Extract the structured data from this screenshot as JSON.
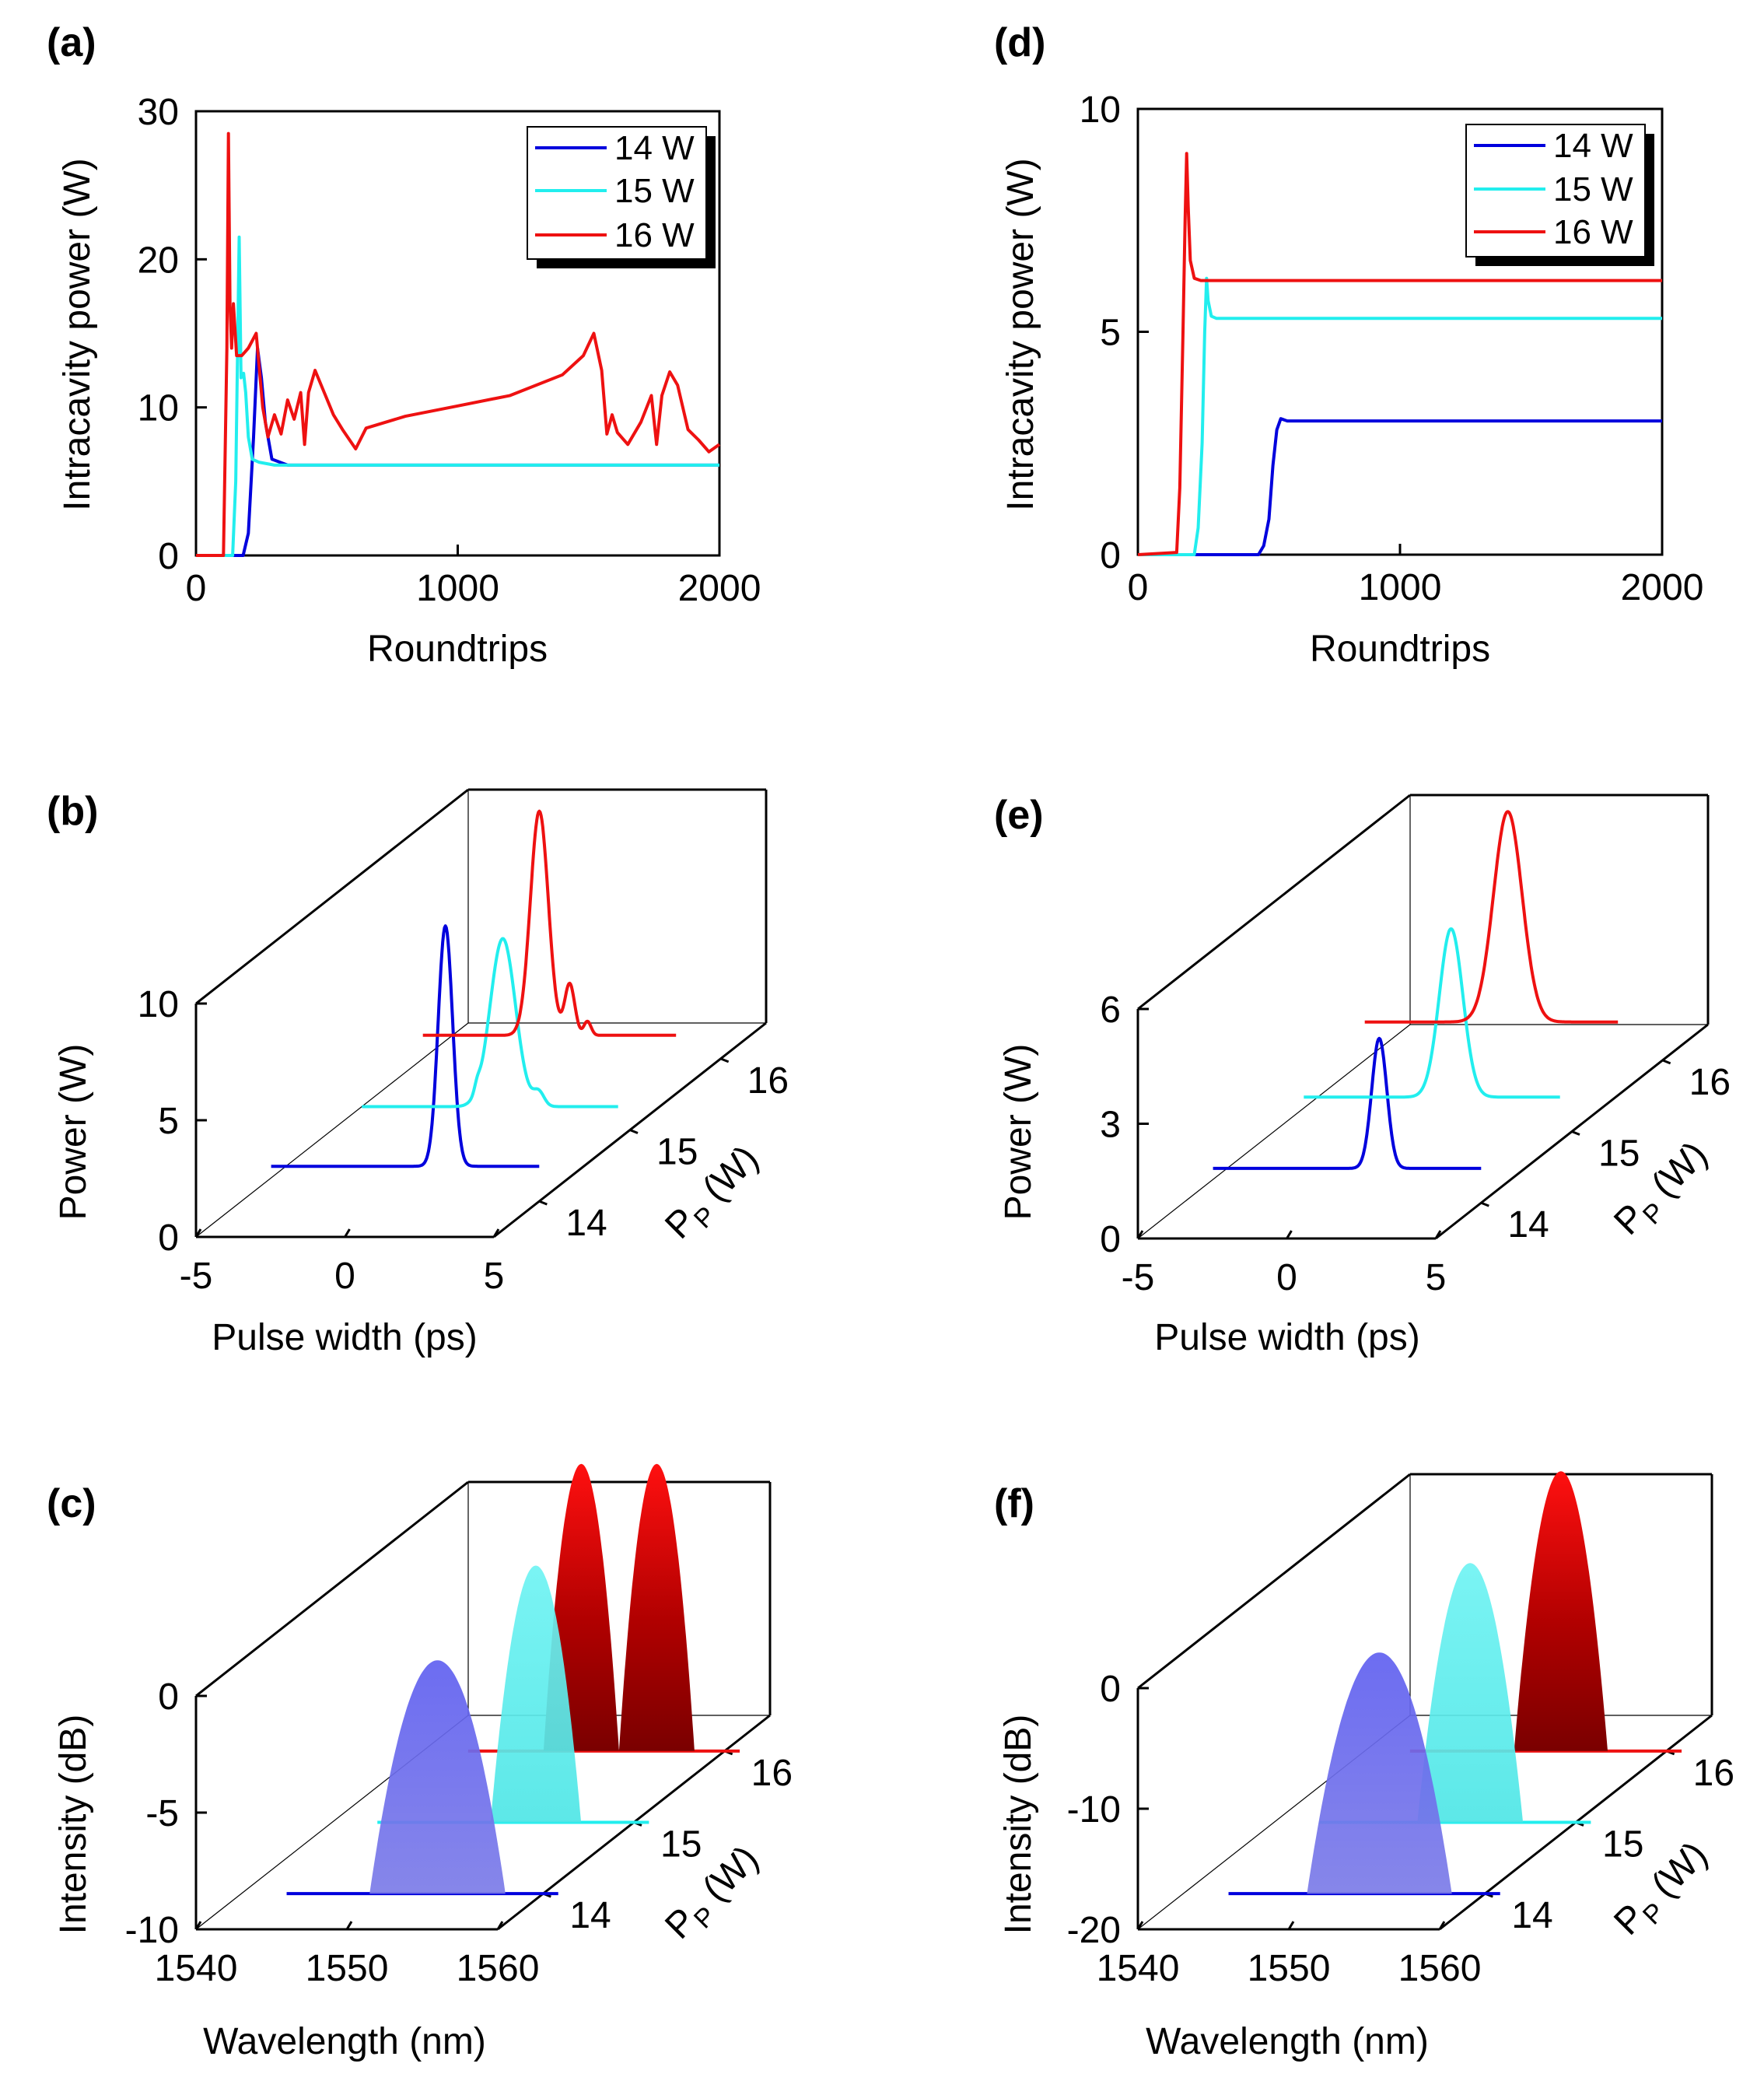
{
  "colors": {
    "p14": "#0000dd",
    "p15": "#22eeee",
    "p16": "#ee1111"
  },
  "chart_data": [
    {
      "panel": "(a)",
      "type": "line",
      "xlabel": "Roundtrips",
      "ylabel": "Intracavity power (W)",
      "xlim": [
        0,
        2000
      ],
      "ylim": [
        0,
        30
      ],
      "xticks": [
        "0",
        "1000",
        "2000"
      ],
      "yticks": [
        "0",
        "10",
        "20",
        "30"
      ],
      "legend": [
        "14 W",
        "15 W",
        "16 W"
      ],
      "legend_position": "top-right",
      "series": [
        {
          "name": "14 W",
          "x": [
            0,
            180,
            200,
            220,
            235,
            250,
            265,
            290,
            350,
            1000,
            2000
          ],
          "y": [
            0,
            0,
            1.5,
            8,
            14,
            12,
            9,
            6.5,
            6.1,
            6.1,
            6.1
          ]
        },
        {
          "name": "15 W",
          "x": [
            0,
            140,
            152,
            165,
            172,
            182,
            190,
            200,
            215,
            240,
            270,
            300,
            1000,
            2000
          ],
          "y": [
            0,
            0,
            5,
            21.5,
            12,
            12.3,
            11,
            8,
            6.5,
            6.3,
            6.2,
            6.1,
            6.1,
            6.1
          ]
        },
        {
          "name": "16 W",
          "x": [
            0,
            105,
            118,
            124,
            130,
            136,
            143,
            155,
            175,
            200,
            230,
            255,
            275,
            300,
            325,
            350,
            375,
            400,
            415,
            430,
            455,
            490,
            525,
            560,
            610,
            650,
            800,
            1000,
            1200,
            1400,
            1480,
            1520,
            1550,
            1570,
            1590,
            1610,
            1650,
            1700,
            1740,
            1760,
            1780,
            1810,
            1840,
            1880,
            1920,
            1960,
            2000
          ],
          "y": [
            0,
            0,
            14,
            28.5,
            17,
            14,
            17,
            13.5,
            13.5,
            14,
            15,
            10,
            8,
            9.5,
            8.2,
            10.5,
            9.2,
            11,
            7.5,
            11,
            12.5,
            11,
            9.5,
            8.5,
            7.2,
            8.6,
            9.4,
            10.1,
            10.8,
            12.2,
            13.5,
            15,
            12.5,
            8.2,
            9.5,
            8.3,
            7.5,
            9,
            10.8,
            7.5,
            10.8,
            12.4,
            11.5,
            8.5,
            7.8,
            7,
            7.5
          ]
        }
      ]
    },
    {
      "panel": "(b)",
      "type": "line",
      "xlabel": "Pulse width (ps)",
      "ylabel": "Power (W)",
      "zlabel": "P_P (W)",
      "xlim": [
        -5,
        5
      ],
      "ylim": [
        0,
        10
      ],
      "xticks": [
        "-5",
        "0",
        "5"
      ],
      "yticks": [
        "0",
        "5",
        "10"
      ],
      "zticks": [
        "14",
        "15",
        "16"
      ],
      "series": [
        {
          "name": "14 W",
          "base": 1.5,
          "peaks": [
            {
              "t": 1.5,
              "a": 10.3,
              "w": 0.38
            }
          ],
          "y_max": 10.6
        },
        {
          "name": "15 W",
          "base": 1.0,
          "peaks": [
            {
              "t": 0.5,
              "a": 7.2,
              "w": 0.7
            },
            {
              "t": -0.5,
              "a": 0.35,
              "w": 0.15
            },
            {
              "t": 1.9,
              "a": 0.6,
              "w": 0.3
            }
          ],
          "y_max": 8.0
        },
        {
          "name": "16 W",
          "base": 1.0,
          "peaks": [
            {
              "t": -0.4,
              "a": 9.6,
              "w": 0.5
            },
            {
              "t": 0.8,
              "a": 2.2,
              "w": 0.28
            },
            {
              "t": 1.5,
              "a": 0.6,
              "w": 0.2
            }
          ],
          "y_max": 10.5
        }
      ]
    },
    {
      "panel": "(c)",
      "type": "area",
      "xlabel": "Wavelength (nm)",
      "ylabel": "Intensity (dB)",
      "zlabel": "P_P (W)",
      "xlim": [
        1540,
        1560
      ],
      "ylim": [
        -10,
        0
      ],
      "xticks": [
        "1540",
        "1550",
        "1560"
      ],
      "yticks": [
        "-10",
        "-5",
        "0"
      ],
      "zticks": [
        "14",
        "15",
        "16"
      ],
      "series": [
        {
          "name": "14 W",
          "lobes": [
            {
              "center": 1553,
              "half_width": 4.5,
              "peak_db": 0
            }
          ]
        },
        {
          "name": "15 W",
          "lobes": [
            {
              "center": 1553.5,
              "half_width": 3.0,
              "peak_db": 1.0
            }
          ]
        },
        {
          "name": "16 W",
          "lobes": [
            {
              "center": 1550.5,
              "half_width": 2.5,
              "peak_db": 2.3
            },
            {
              "center": 1555.5,
              "half_width": 2.5,
              "peak_db": 2.3
            }
          ]
        }
      ]
    },
    {
      "panel": "(d)",
      "type": "line",
      "xlabel": "Roundtrips",
      "ylabel": "Intracavity power (W)",
      "xlim": [
        0,
        2000
      ],
      "ylim": [
        0,
        10
      ],
      "xticks": [
        "0",
        "1000",
        "2000"
      ],
      "yticks": [
        "0",
        "5",
        "10"
      ],
      "legend": [
        "14 W",
        "15 W",
        "16 W"
      ],
      "legend_position": "top-right",
      "series": [
        {
          "name": "14 W",
          "x": [
            0,
            460,
            480,
            500,
            515,
            530,
            545,
            570,
            2000
          ],
          "y": [
            0,
            0,
            0.2,
            0.8,
            2.0,
            2.8,
            3.05,
            3.0,
            3.0
          ]
        },
        {
          "name": "15 W",
          "x": [
            0,
            215,
            230,
            245,
            255,
            262,
            268,
            280,
            300,
            2000
          ],
          "y": [
            0,
            0,
            0.6,
            2.5,
            5.0,
            6.2,
            5.7,
            5.35,
            5.3,
            5.3
          ]
        },
        {
          "name": "16 W",
          "x": [
            0,
            148,
            160,
            172,
            180,
            186,
            192,
            200,
            215,
            240,
            2000
          ],
          "y": [
            0,
            0.05,
            1.5,
            5.0,
            7.5,
            9.0,
            7.8,
            6.6,
            6.2,
            6.15,
            6.15
          ]
        }
      ]
    },
    {
      "panel": "(e)",
      "type": "line",
      "xlabel": "Pulse width (ps)",
      "ylabel": "Power (W)",
      "zlabel": "P_P (W)",
      "xlim": [
        -5,
        5
      ],
      "ylim": [
        0,
        6
      ],
      "xticks": [
        "-5",
        "0",
        "5"
      ],
      "yticks": [
        "0",
        "3",
        "6"
      ],
      "zticks": [
        "14",
        "15",
        "16"
      ],
      "series": [
        {
          "name": "14 W",
          "base": 0.9,
          "peaks": [
            {
              "t": 1.2,
              "a": 3.4,
              "w": 0.4
            }
          ],
          "y_max": 4.3
        },
        {
          "name": "15 W",
          "base": 0.9,
          "peaks": [
            {
              "t": 0.75,
              "a": 4.4,
              "w": 0.65
            }
          ],
          "y_max": 5.3
        },
        {
          "name": "16 W",
          "base": 1.0,
          "peaks": [
            {
              "t": 0.65,
              "a": 5.5,
              "w": 0.8
            }
          ],
          "y_max": 6.5
        }
      ]
    },
    {
      "panel": "(f)",
      "type": "area",
      "xlabel": "Wavelength (nm)",
      "ylabel": "Intensity (dB)",
      "zlabel": "P_P (W)",
      "xlim": [
        1540,
        1560
      ],
      "ylim": [
        -20,
        0
      ],
      "xticks": [
        "1540",
        "1550",
        "1560"
      ],
      "yticks": [
        "-20",
        "-10",
        "0"
      ],
      "zticks": [
        "14",
        "15",
        "16"
      ],
      "series": [
        {
          "name": "14 W",
          "lobes": [
            {
              "center": 1553,
              "half_width": 4.8,
              "peak_db": 0
            }
          ]
        },
        {
          "name": "15 W",
          "lobes": [
            {
              "center": 1553,
              "half_width": 3.5,
              "peak_db": 1.5
            }
          ]
        },
        {
          "name": "16 W",
          "lobes": [
            {
              "center": 1553,
              "half_width": 3.1,
              "peak_db": 3.2
            }
          ]
        }
      ]
    }
  ]
}
